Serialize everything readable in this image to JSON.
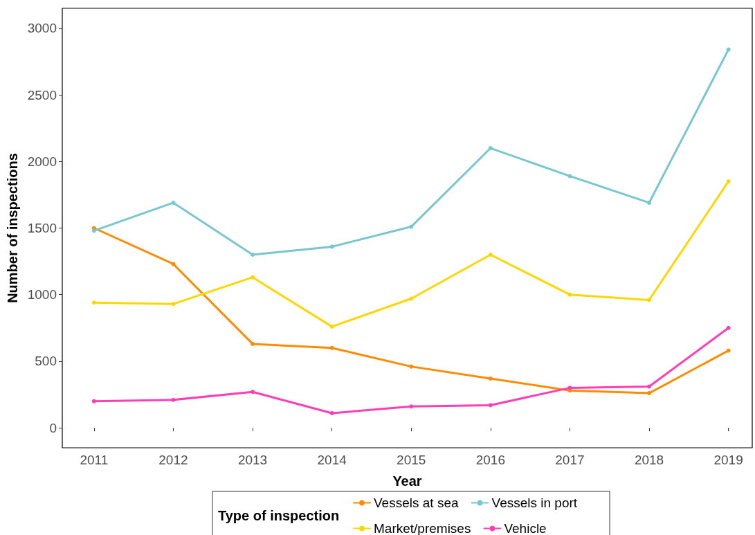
{
  "chart_data": {
    "type": "line",
    "xlabel": "Year",
    "ylabel": "Number of inspections",
    "legend_title": "Type of inspection",
    "x": [
      2011,
      2012,
      2013,
      2014,
      2015,
      2016,
      2017,
      2018,
      2019
    ],
    "series": [
      {
        "name": "Vessels at sea",
        "color": "#ff8c00",
        "values": [
          1500,
          1230,
          630,
          600,
          460,
          370,
          280,
          260,
          580
        ]
      },
      {
        "name": "Vessels in port",
        "color": "#78c6cf",
        "values": [
          1480,
          1690,
          1300,
          1360,
          1510,
          2100,
          1890,
          1690,
          2840
        ]
      },
      {
        "name": "Market/premises",
        "color": "#ffd700",
        "values": [
          940,
          930,
          1130,
          760,
          970,
          1300,
          1000,
          960,
          1850
        ]
      },
      {
        "name": "Vehicle",
        "color": "#ff3eb5",
        "values": [
          200,
          210,
          270,
          110,
          160,
          170,
          300,
          310,
          750
        ]
      }
    ],
    "xlim": [
      2010.6,
      2019.3
    ],
    "xticks": [
      2011,
      2012,
      2013,
      2014,
      2015,
      2016,
      2017,
      2018,
      2019
    ],
    "ylim": [
      -150,
      3150
    ],
    "yticks": [
      0,
      500,
      1000,
      1500,
      2000,
      2500,
      3000
    ],
    "grid": false,
    "legend": "bottom",
    "marker": "circle",
    "line_style": "solid"
  }
}
